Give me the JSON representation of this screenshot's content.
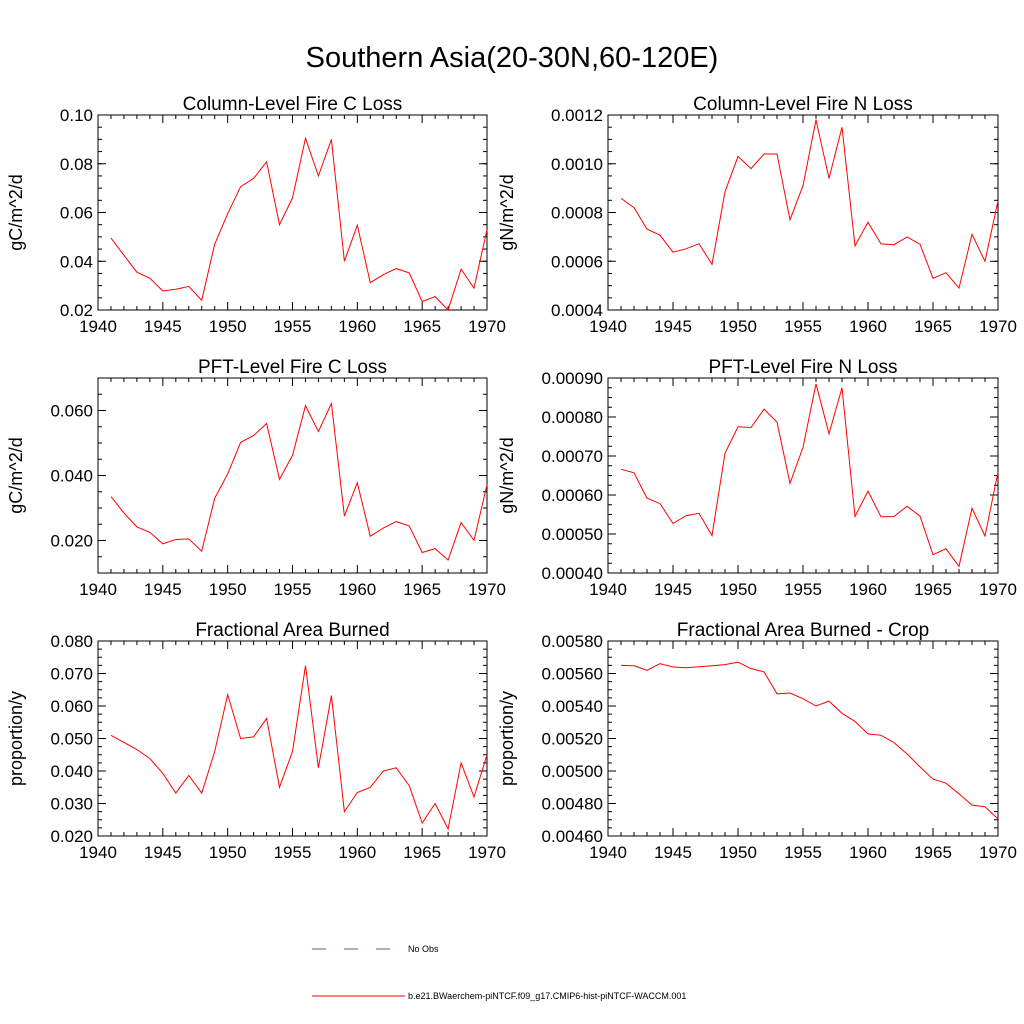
{
  "figure": {
    "title": "Southern Asia(20-30N,60-120E)"
  },
  "legend": {
    "entries": [
      {
        "label": "No Obs",
        "color": "#5555aa",
        "dash": true
      },
      {
        "label": "b.e21.BWaerchem-piNTCF.f09_g17.CMIP6-hist-piNTCF-WACCM.001",
        "color": "#ff0000",
        "dash": false
      }
    ]
  },
  "chart_data": [
    {
      "type": "line",
      "title": "Column-Level Fire C Loss",
      "xlabel": "",
      "ylabel": "gC/m^2/d",
      "xlim": [
        1940,
        1970
      ],
      "ylim": [
        0.02,
        0.1
      ],
      "xticks": [
        1940,
        1945,
        1950,
        1955,
        1960,
        1965,
        1970
      ],
      "xtick_labels": [
        "1940",
        "1945",
        "1950",
        "1955",
        "1960",
        "1965",
        "1970"
      ],
      "yticks": [
        0.02,
        0.04,
        0.06,
        0.08,
        0.1
      ],
      "ytick_labels": [
        "0.02",
        "0.04",
        "0.06",
        "0.08",
        "0.10"
      ],
      "grid": false,
      "series": [
        {
          "color": "#ff0000",
          "x": [
            1941,
            1942,
            1943,
            1944,
            1945,
            1946,
            1947,
            1948,
            1949,
            1950,
            1951,
            1952,
            1953,
            1954,
            1955,
            1956,
            1957,
            1958,
            1959,
            1960,
            1961,
            1962,
            1963,
            1964,
            1965,
            1966,
            1967,
            1968,
            1969,
            1970
          ],
          "y": [
            0.0495,
            0.0425,
            0.0355,
            0.033,
            0.0278,
            0.0285,
            0.0297,
            0.024,
            0.047,
            0.0595,
            0.0706,
            0.074,
            0.0808,
            0.055,
            0.066,
            0.0905,
            0.075,
            0.09,
            0.04,
            0.0548,
            0.0312,
            0.0345,
            0.037,
            0.0352,
            0.0235,
            0.0255,
            0.02,
            0.0368,
            0.029,
            0.053
          ]
        }
      ]
    },
    {
      "type": "line",
      "title": "Column-Level Fire N Loss",
      "xlabel": "",
      "ylabel": "gN/m^2/d",
      "xlim": [
        1940,
        1970
      ],
      "ylim": [
        0.0004,
        0.0012
      ],
      "xticks": [
        1940,
        1945,
        1950,
        1955,
        1960,
        1965,
        1970
      ],
      "xtick_labels": [
        "1940",
        "1945",
        "1950",
        "1955",
        "1960",
        "1965",
        "1970"
      ],
      "yticks": [
        0.0004,
        0.0006,
        0.0008,
        0.001,
        0.0012
      ],
      "ytick_labels": [
        "0.0004",
        "0.0006",
        "0.0008",
        "0.0010",
        "0.0012"
      ],
      "grid": false,
      "series": [
        {
          "color": "#ff0000",
          "x": [
            1941,
            1942,
            1943,
            1944,
            1945,
            1946,
            1947,
            1948,
            1949,
            1950,
            1951,
            1952,
            1953,
            1954,
            1955,
            1956,
            1957,
            1958,
            1959,
            1960,
            1961,
            1962,
            1963,
            1964,
            1965,
            1966,
            1967,
            1968,
            1969,
            1970
          ],
          "y": [
            0.000858,
            0.00082,
            0.000732,
            0.000707,
            0.000637,
            0.000651,
            0.000672,
            0.000587,
            0.000885,
            0.00103,
            0.00098,
            0.00104,
            0.00104,
            0.00077,
            0.00091,
            0.00118,
            0.00094,
            0.00115,
            0.000663,
            0.00076,
            0.000671,
            0.000668,
            0.0007,
            0.00067,
            0.00053,
            0.000553,
            0.00049,
            0.00071,
            0.0006,
            0.000848
          ]
        }
      ]
    },
    {
      "type": "line",
      "title": "PFT-Level Fire C Loss",
      "xlabel": "",
      "ylabel": "gC/m^2/d",
      "xlim": [
        1940,
        1970
      ],
      "ylim": [
        0.01,
        0.07
      ],
      "xticks": [
        1940,
        1945,
        1950,
        1955,
        1960,
        1965,
        1970
      ],
      "xtick_labels": [
        "1940",
        "1945",
        "1950",
        "1955",
        "1960",
        "1965",
        "1970"
      ],
      "yticks": [
        0.02,
        0.04,
        0.06
      ],
      "ytick_labels": [
        "0.020",
        "0.040",
        "0.060"
      ],
      "grid": false,
      "series": [
        {
          "color": "#ff0000",
          "x": [
            1941,
            1942,
            1943,
            1944,
            1945,
            1946,
            1947,
            1948,
            1949,
            1950,
            1951,
            1952,
            1953,
            1954,
            1955,
            1956,
            1957,
            1958,
            1959,
            1960,
            1961,
            1962,
            1963,
            1964,
            1965,
            1966,
            1967,
            1968,
            1969,
            1970
          ],
          "y": [
            0.0335,
            0.0285,
            0.0242,
            0.0225,
            0.019,
            0.0203,
            0.0205,
            0.0167,
            0.033,
            0.0405,
            0.0502,
            0.0523,
            0.056,
            0.0388,
            0.0462,
            0.0615,
            0.0535,
            0.0622,
            0.0275,
            0.0378,
            0.0213,
            0.0238,
            0.0258,
            0.0245,
            0.0163,
            0.0175,
            0.014,
            0.0255,
            0.02,
            0.0372
          ]
        }
      ]
    },
    {
      "type": "line",
      "title": "PFT-Level Fire N Loss",
      "xlabel": "",
      "ylabel": "gN/m^2/d",
      "xlim": [
        1940,
        1970
      ],
      "ylim": [
        0.0004,
        0.0009
      ],
      "xticks": [
        1940,
        1945,
        1950,
        1955,
        1960,
        1965,
        1970
      ],
      "xtick_labels": [
        "1940",
        "1945",
        "1950",
        "1955",
        "1960",
        "1965",
        "1970"
      ],
      "yticks": [
        0.0004,
        0.0005,
        0.0006,
        0.0007,
        0.0008,
        0.0009
      ],
      "ytick_labels": [
        "0.00040",
        "0.00050",
        "0.00060",
        "0.00070",
        "0.00080",
        "0.00090"
      ],
      "grid": false,
      "series": [
        {
          "color": "#ff0000",
          "x": [
            1941,
            1942,
            1943,
            1944,
            1945,
            1946,
            1947,
            1948,
            1949,
            1950,
            1951,
            1952,
            1953,
            1954,
            1955,
            1956,
            1957,
            1958,
            1959,
            1960,
            1961,
            1962,
            1963,
            1964,
            1965,
            1966,
            1967,
            1968,
            1969,
            1970
          ],
          "y": [
            0.000666,
            0.000657,
            0.000592,
            0.000578,
            0.000527,
            0.000547,
            0.000553,
            0.000496,
            0.000707,
            0.000775,
            0.000773,
            0.00082,
            0.000787,
            0.00063,
            0.000722,
            0.000885,
            0.000757,
            0.000875,
            0.000545,
            0.00061,
            0.000544,
            0.000545,
            0.000571,
            0.000546,
            0.000447,
            0.000462,
            0.000417,
            0.000566,
            0.000495,
            0.000659
          ]
        }
      ]
    },
    {
      "type": "line",
      "title": "Fractional Area Burned",
      "xlabel": "",
      "ylabel": "proportion/y",
      "xlim": [
        1940,
        1970
      ],
      "ylim": [
        0.02,
        0.08
      ],
      "xticks": [
        1940,
        1945,
        1950,
        1955,
        1960,
        1965,
        1970
      ],
      "xtick_labels": [
        "1940",
        "1945",
        "1950",
        "1955",
        "1960",
        "1965",
        "1970"
      ],
      "yticks": [
        0.02,
        0.03,
        0.04,
        0.05,
        0.06,
        0.07,
        0.08
      ],
      "ytick_labels": [
        "0.020",
        "0.030",
        "0.040",
        "0.050",
        "0.060",
        "0.070",
        "0.080"
      ],
      "grid": false,
      "series": [
        {
          "color": "#ff0000",
          "x": [
            1941,
            1942,
            1943,
            1944,
            1945,
            1946,
            1947,
            1948,
            1949,
            1950,
            1951,
            1952,
            1953,
            1954,
            1955,
            1956,
            1957,
            1958,
            1959,
            1960,
            1961,
            1962,
            1963,
            1964,
            1965,
            1966,
            1967,
            1968,
            1969,
            1970
          ],
          "y": [
            0.051,
            0.0488,
            0.0466,
            0.0438,
            0.0393,
            0.0332,
            0.0386,
            0.0332,
            0.046,
            0.0635,
            0.05,
            0.0505,
            0.0562,
            0.035,
            0.046,
            0.0724,
            0.041,
            0.0632,
            0.0275,
            0.0334,
            0.035,
            0.04,
            0.041,
            0.0355,
            0.024,
            0.03,
            0.0222,
            0.0425,
            0.032,
            0.045
          ]
        }
      ]
    },
    {
      "type": "line",
      "title": "Fractional Area Burned - Crop",
      "xlabel": "",
      "ylabel": "proportion/y",
      "xlim": [
        1940,
        1970
      ],
      "ylim": [
        0.0046,
        0.0058
      ],
      "xticks": [
        1940,
        1945,
        1950,
        1955,
        1960,
        1965,
        1970
      ],
      "xtick_labels": [
        "1940",
        "1945",
        "1950",
        "1955",
        "1960",
        "1965",
        "1970"
      ],
      "yticks": [
        0.0046,
        0.0048,
        0.005,
        0.0052,
        0.0054,
        0.0056,
        0.0058
      ],
      "ytick_labels": [
        "0.00460",
        "0.00480",
        "0.00500",
        "0.00520",
        "0.00540",
        "0.00560",
        "0.00580"
      ],
      "grid": false,
      "series": [
        {
          "color": "#ff0000",
          "x": [
            1941,
            1942,
            1943,
            1944,
            1945,
            1946,
            1947,
            1948,
            1949,
            1950,
            1951,
            1952,
            1953,
            1954,
            1955,
            1956,
            1957,
            1958,
            1959,
            1960,
            1961,
            1962,
            1963,
            1964,
            1965,
            1966,
            1967,
            1968,
            1969,
            1970
          ],
          "y": [
            0.00565,
            0.005648,
            0.00562,
            0.00566,
            0.00564,
            0.005635,
            0.005642,
            0.005648,
            0.005655,
            0.00567,
            0.00563,
            0.00561,
            0.005475,
            0.00548,
            0.005445,
            0.0054,
            0.00543,
            0.005355,
            0.005305,
            0.005228,
            0.00522,
            0.005175,
            0.005105,
            0.005025,
            0.00495,
            0.004925,
            0.00486,
            0.00479,
            0.00478,
            0.004705
          ]
        }
      ]
    }
  ]
}
